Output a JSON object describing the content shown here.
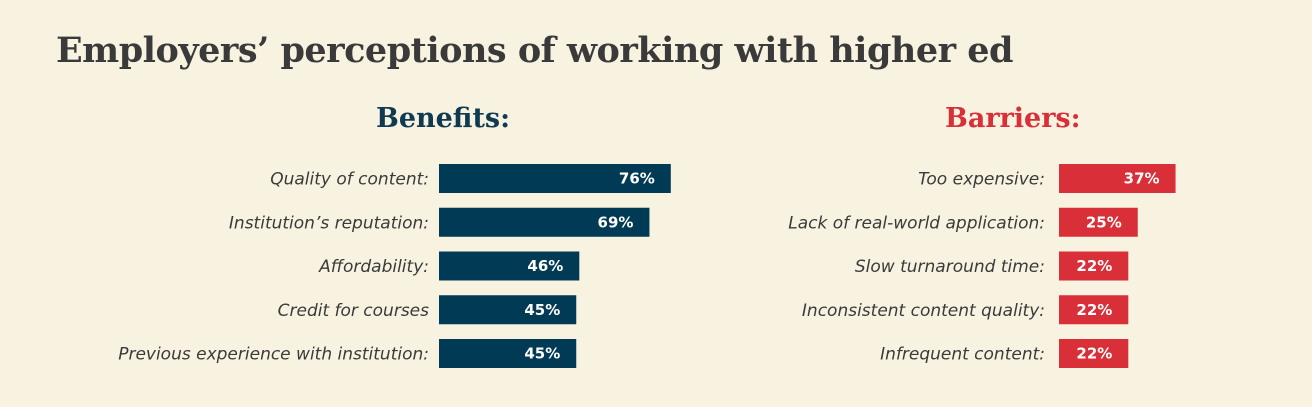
{
  "title": "Employers’ perceptions of working with higher ed",
  "chart_data": [
    {
      "type": "bar",
      "orientation": "horizontal",
      "title": "Benefits:",
      "color": "#003a54",
      "categories": [
        "Quality of content:",
        "Institution’s reputation:",
        "Affordability:",
        "Credit for courses",
        "Previous experience with institution:"
      ],
      "values": [
        76,
        69,
        46,
        45,
        45
      ],
      "value_labels": [
        "76%",
        "69%",
        "46%",
        "45%",
        "45%"
      ],
      "unit": "%",
      "xlim": [
        0,
        100
      ]
    },
    {
      "type": "bar",
      "orientation": "horizontal",
      "title": "Barriers:",
      "color": "#d82f38",
      "categories": [
        "Too expensive:",
        "Lack of real-world application:",
        "Slow turnaround time:",
        "Inconsistent content quality:",
        "Infrequent content:"
      ],
      "values": [
        37,
        25,
        22,
        22,
        22
      ],
      "value_labels": [
        "37%",
        "25%",
        "22%",
        "22%",
        "22%"
      ],
      "unit": "%",
      "xlim": [
        0,
        100
      ]
    }
  ]
}
